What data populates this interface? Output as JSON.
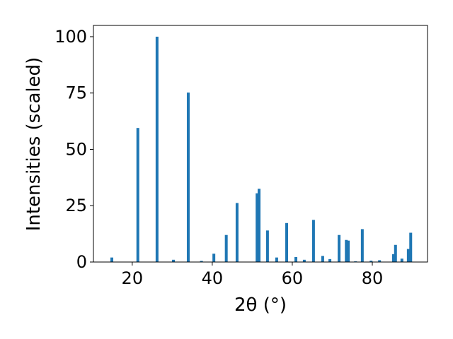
{
  "chart_data": {
    "type": "bar",
    "xlabel": "2θ (°)",
    "ylabel": "Intensities (scaled)",
    "x": [
      14.9,
      21.4,
      26.2,
      30.3,
      34.0,
      37.3,
      40.4,
      43.5,
      46.2,
      51.2,
      51.7,
      53.8,
      56.1,
      58.6,
      60.9,
      63.0,
      65.3,
      67.6,
      69.4,
      71.7,
      73.5,
      74.0,
      75.8,
      77.5,
      79.7,
      81.8,
      85.3,
      85.8,
      87.4,
      89.0,
      89.6
    ],
    "values": [
      2,
      59.5,
      100,
      1,
      75.2,
      0.5,
      3.7,
      12,
      26.2,
      30.5,
      32.5,
      14,
      2,
      17.3,
      2.2,
      1,
      18.7,
      2.7,
      1.3,
      12,
      9.8,
      9.5,
      0.3,
      14.6,
      0.6,
      0.8,
      3.5,
      7.6,
      1.5,
      5.8,
      13
    ],
    "color": "#1f77b4",
    "xlim": [
      10.3,
      93.8
    ],
    "xticks": [
      20,
      40,
      60,
      80
    ],
    "ylim": [
      0,
      105
    ],
    "yticks": [
      0,
      25,
      50,
      75,
      100
    ],
    "grid": false
  }
}
